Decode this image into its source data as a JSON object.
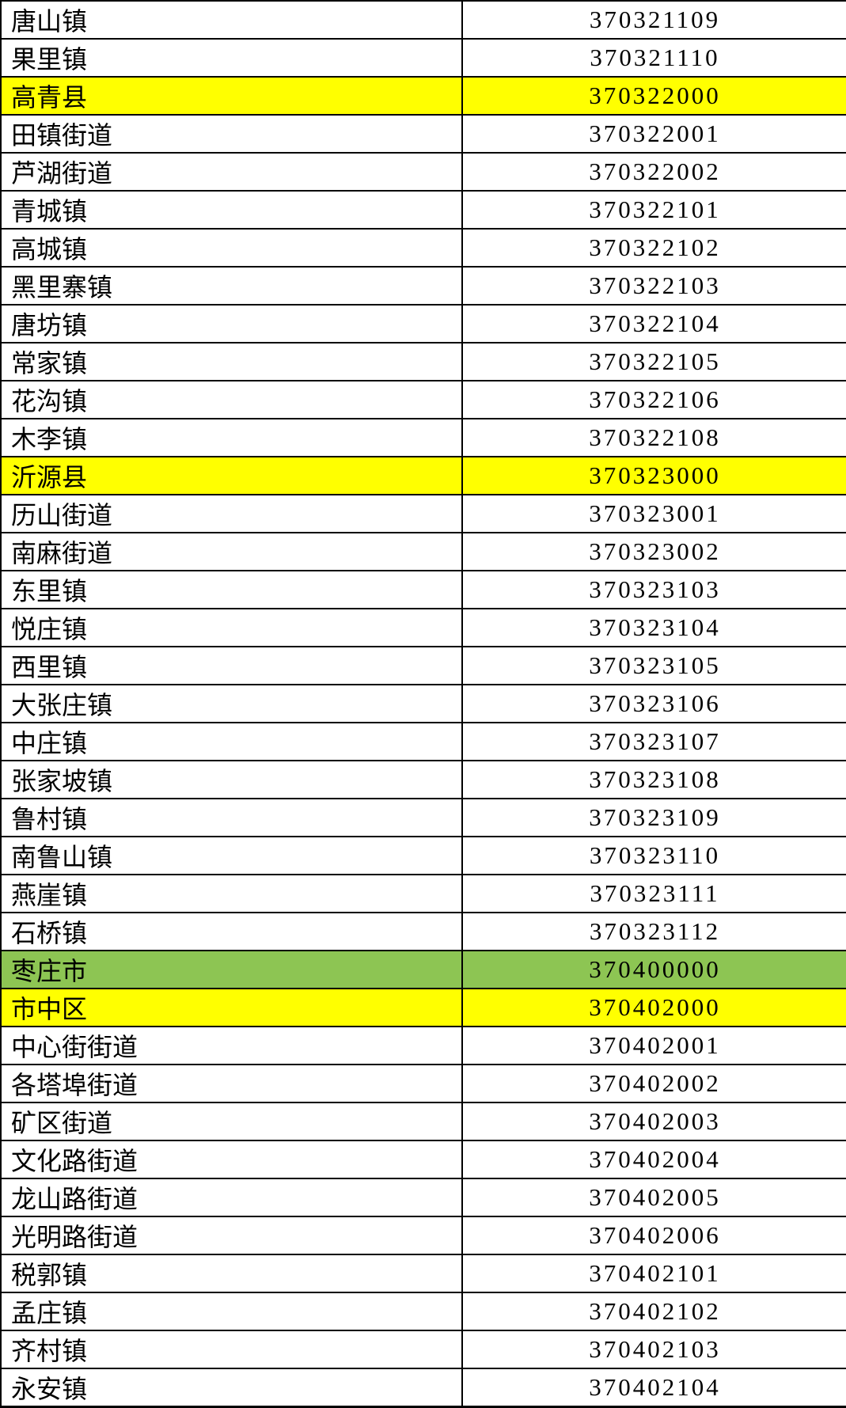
{
  "table": {
    "description_colors": {
      "county_highlight": "#FFFF00",
      "city_highlight": "#8DC553",
      "border": "#000000",
      "text": "#000000",
      "row_background": "#FFFFFF"
    },
    "highlight_colors": {
      "yellow": "#FFFF00",
      "green": "#8DC553"
    },
    "rows": [
      {
        "name": "唐山镇",
        "code": "370321109",
        "highlight": "none"
      },
      {
        "name": "果里镇",
        "code": "370321110",
        "highlight": "none"
      },
      {
        "name": "高青县",
        "code": "370322000",
        "highlight": "yellow"
      },
      {
        "name": "田镇街道",
        "code": "370322001",
        "highlight": "none"
      },
      {
        "name": "芦湖街道",
        "code": "370322002",
        "highlight": "none"
      },
      {
        "name": "青城镇",
        "code": "370322101",
        "highlight": "none"
      },
      {
        "name": "高城镇",
        "code": "370322102",
        "highlight": "none"
      },
      {
        "name": "黑里寨镇",
        "code": "370322103",
        "highlight": "none"
      },
      {
        "name": "唐坊镇",
        "code": "370322104",
        "highlight": "none"
      },
      {
        "name": "常家镇",
        "code": "370322105",
        "highlight": "none"
      },
      {
        "name": "花沟镇",
        "code": "370322106",
        "highlight": "none"
      },
      {
        "name": "木李镇",
        "code": "370322108",
        "highlight": "none"
      },
      {
        "name": "沂源县",
        "code": "370323000",
        "highlight": "yellow"
      },
      {
        "name": "历山街道",
        "code": "370323001",
        "highlight": "none"
      },
      {
        "name": "南麻街道",
        "code": "370323002",
        "highlight": "none"
      },
      {
        "name": "东里镇",
        "code": "370323103",
        "highlight": "none"
      },
      {
        "name": "悦庄镇",
        "code": "370323104",
        "highlight": "none"
      },
      {
        "name": "西里镇",
        "code": "370323105",
        "highlight": "none"
      },
      {
        "name": "大张庄镇",
        "code": "370323106",
        "highlight": "none"
      },
      {
        "name": "中庄镇",
        "code": "370323107",
        "highlight": "none"
      },
      {
        "name": "张家坡镇",
        "code": "370323108",
        "highlight": "none"
      },
      {
        "name": "鲁村镇",
        "code": "370323109",
        "highlight": "none"
      },
      {
        "name": "南鲁山镇",
        "code": "370323110",
        "highlight": "none"
      },
      {
        "name": "燕崖镇",
        "code": "370323111",
        "highlight": "none"
      },
      {
        "name": "石桥镇",
        "code": "370323112",
        "highlight": "none"
      },
      {
        "name": "枣庄市",
        "code": "370400000",
        "highlight": "green"
      },
      {
        "name": "市中区",
        "code": "370402000",
        "highlight": "yellow"
      },
      {
        "name": "中心街街道",
        "code": "370402001",
        "highlight": "none"
      },
      {
        "name": "各塔埠街道",
        "code": "370402002",
        "highlight": "none"
      },
      {
        "name": "矿区街道",
        "code": "370402003",
        "highlight": "none"
      },
      {
        "name": "文化路街道",
        "code": "370402004",
        "highlight": "none"
      },
      {
        "name": "龙山路街道",
        "code": "370402005",
        "highlight": "none"
      },
      {
        "name": "光明路街道",
        "code": "370402006",
        "highlight": "none"
      },
      {
        "name": "税郭镇",
        "code": "370402101",
        "highlight": "none"
      },
      {
        "name": "孟庄镇",
        "code": "370402102",
        "highlight": "none"
      },
      {
        "name": "齐村镇",
        "code": "370402103",
        "highlight": "none"
      },
      {
        "name": "永安镇",
        "code": "370402104",
        "highlight": "none"
      }
    ]
  }
}
